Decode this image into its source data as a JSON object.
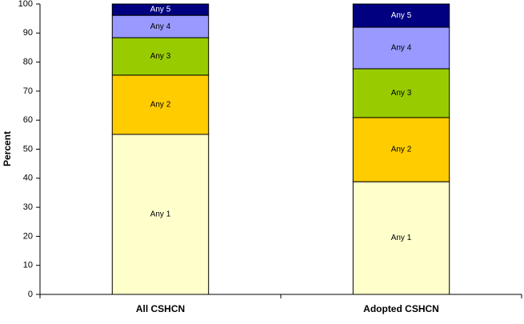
{
  "chart_data": {
    "type": "stacked_bar",
    "y_label": "Percent",
    "categories": [
      "All CSHCN",
      "Adopted CSHCN"
    ],
    "series": [
      {
        "name": "Any 1",
        "color": "#ffffcc",
        "values": [
          55.1,
          38.8
        ]
      },
      {
        "name": "Any 2",
        "color": "#ffcc00",
        "values": [
          20.4,
          22.1
        ]
      },
      {
        "name": "Any 3",
        "color": "#99cc00",
        "values": [
          12.9,
          16.8
        ]
      },
      {
        "name": "Any 4",
        "color": "#9999ff",
        "values": [
          7.7,
          14.3
        ]
      },
      {
        "name": "Any 5",
        "color": "#000080",
        "values": [
          3.9,
          8.0
        ]
      }
    ],
    "ylim": [
      0,
      100
    ],
    "yticks": [
      0,
      10,
      20,
      30,
      40,
      50,
      60,
      70,
      80,
      90,
      100
    ]
  }
}
